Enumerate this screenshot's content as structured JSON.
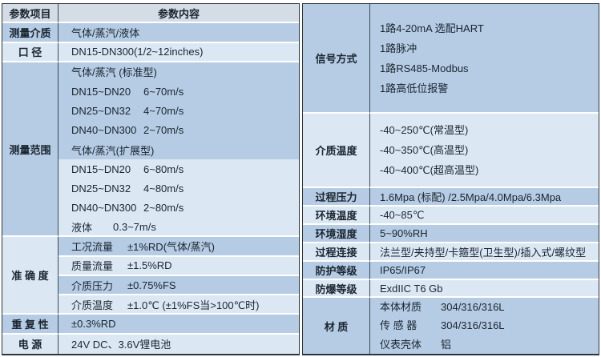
{
  "colors": {
    "row_medium_blue": "#b5cce4",
    "row_light_blue": "#dbe8f4",
    "header_gray_blue": "#d4dce6",
    "separator_white": "#ffffff",
    "divider_dark": "#3c4a58",
    "outer_border": "#2e353c",
    "text": "#1b2530",
    "page_background": "#ffffff"
  },
  "left": {
    "header": {
      "param_col": "参数项目",
      "content_col": "参数内容"
    },
    "rows_top": [
      {
        "label": "测量介质",
        "value": "气体/蒸汽/液体"
      },
      {
        "label": "口 径",
        "value": "DN15-DN300(1/2~12inches)"
      }
    ],
    "measuring_range": {
      "label": "测量范围",
      "rows": [
        {
          "name": "气体/蒸汽 (标准型)",
          "value": ""
        },
        {
          "name": "DN15~DN20",
          "value": "6~70m/s"
        },
        {
          "name": "DN25~DN32",
          "value": "4~70m/s"
        },
        {
          "name": "DN40~DN300",
          "value": "2~70m/s"
        },
        {
          "name": "气体/蒸汽(扩展型)",
          "value": ""
        },
        {
          "name": "DN15~DN20",
          "value": "6~80m/s"
        },
        {
          "name": "DN25~DN32",
          "value": "4~80m/s"
        },
        {
          "name": "DN40~DN300",
          "value": "2~80m/s"
        },
        {
          "name": "液体",
          "value": "0.3~7m/s"
        }
      ]
    },
    "accuracy": {
      "label": "准 确 度",
      "rows": [
        {
          "name": "工况流量",
          "value": "±1%RD(气体/蒸汽)"
        },
        {
          "name": "质量流量",
          "value": "±1.5%RD"
        },
        {
          "name": "介质压力",
          "value": "±0.75%FS"
        },
        {
          "name": "介质温度",
          "value": "±1.0℃ (±1%FS当>100℃时)"
        }
      ]
    },
    "repeatability": {
      "label": "重 复 性",
      "value": "±0.3%RD"
    },
    "power": {
      "label": "电 源",
      "value": "24V DC、3.6V锂电池"
    }
  },
  "right": {
    "signal": {
      "label": "信号方式",
      "lines": [
        "1路4-20mA 选配HART",
        "1路脉冲",
        "1路RS485-Modbus",
        "1路高低位报警"
      ]
    },
    "medium_temperature": {
      "label": "介质温度",
      "lines": [
        "-40~250℃(常温型)",
        "-40~350℃(高温型)",
        "-40~400℃(超高温型)"
      ]
    },
    "process_pressure": {
      "label": "过程压力",
      "value": "1.6Mpa (标配) /2.5Mpa/4.0Mpa/6.3Mpa"
    },
    "ambient_temperature": {
      "label": "环境温度",
      "value": "-40~85℃"
    },
    "ambient_humidity": {
      "label": "环境湿度",
      "value": "5~90%RH"
    },
    "process_connection": {
      "label": "过程连接",
      "value": "法兰型/夹持型/卡箍型(卫生型)/插入式/螺纹型"
    },
    "protection_rating": {
      "label": "防护等级",
      "value": "IP65/IP67"
    },
    "explosion_proof_rating": {
      "label": "防爆等级",
      "value": "ExdIIC T6 Gb"
    },
    "material": {
      "label": "材 质",
      "rows": [
        {
          "name": "本体材质",
          "value": "304/316/316L"
        },
        {
          "name": "传 感 器",
          "value": "304/316/316L"
        },
        {
          "name": "仪表壳体",
          "value": "铝"
        }
      ]
    }
  }
}
